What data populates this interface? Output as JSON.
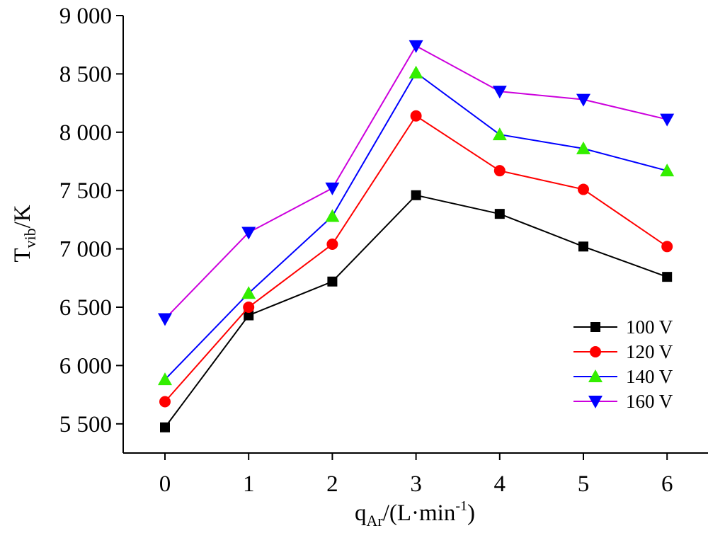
{
  "chart_data": {
    "type": "line",
    "xlabel_parts": {
      "base": "q",
      "sub": "Ar",
      "mid": "/(L·min",
      "sup": "-1",
      "end": ")"
    },
    "ylabel_parts": {
      "base": "T",
      "sub": "vib",
      "end": "/K"
    },
    "x": [
      0,
      1,
      2,
      3,
      4,
      5,
      6
    ],
    "x_tick_labels": [
      "0",
      "1",
      "2",
      "3",
      "4",
      "5",
      "6"
    ],
    "xlim": [
      -0.5,
      6.5
    ],
    "y_ticks": [
      5500,
      6000,
      6500,
      7000,
      7500,
      8000,
      8500,
      9000
    ],
    "y_tick_labels": [
      "5 500",
      "6 000",
      "6 500",
      "7 000",
      "7 500",
      "8 000",
      "8 500",
      "9 000"
    ],
    "ylim": [
      5250,
      9000
    ],
    "grid": false,
    "legend_position": "right",
    "series": [
      {
        "name": "100 V",
        "color": "#000000",
        "marker": "square",
        "values": [
          5470,
          6430,
          6720,
          7460,
          7300,
          7020,
          6760
        ]
      },
      {
        "name": "120 V",
        "color": "#ff0000",
        "marker": "circle",
        "values": [
          5690,
          6500,
          7040,
          8140,
          7670,
          7510,
          7020
        ]
      },
      {
        "name": "140 V",
        "color": "#0000ff",
        "marker_color": "#33ee00",
        "marker": "triangle-up",
        "values": [
          5880,
          6620,
          7280,
          8510,
          7980,
          7860,
          7670
        ]
      },
      {
        "name": "160 V",
        "color": "#cc00dd",
        "marker_color": "#0000ff",
        "marker": "triangle-down",
        "values": [
          6400,
          7140,
          7520,
          8740,
          8350,
          8280,
          8110
        ]
      }
    ]
  }
}
